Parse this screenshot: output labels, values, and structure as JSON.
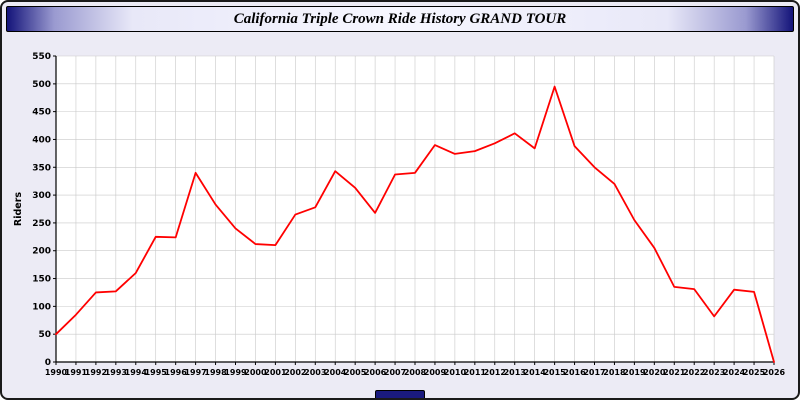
{
  "title": "California Triple Crown Ride History GRAND TOUR",
  "colors": {
    "line": "#ff0000",
    "grid": "#c9c9c9",
    "axis": "#000000",
    "plot_bg": "#ffffff",
    "page_bg": "#ecebf5",
    "titlebar_edge": "#14147a"
  },
  "chart_data": {
    "type": "line",
    "title": "California Triple Crown Ride History GRAND TOUR",
    "xlabel": "",
    "ylabel": "Riders",
    "ylim": [
      0,
      550
    ],
    "ytick_step": 50,
    "grid": true,
    "legend": false,
    "series_name": "Riders",
    "x": [
      1990,
      1991,
      1992,
      1993,
      1994,
      1995,
      1996,
      1997,
      1998,
      1999,
      2000,
      2001,
      2002,
      2003,
      2004,
      2005,
      2006,
      2007,
      2008,
      2009,
      2010,
      2011,
      2012,
      2013,
      2014,
      2015,
      2016,
      2017,
      2018,
      2019,
      2020,
      2021,
      2022,
      2023,
      2024,
      2025,
      2026
    ],
    "values": [
      50,
      85,
      125,
      127,
      160,
      225,
      224,
      340,
      283,
      240,
      212,
      210,
      265,
      278,
      343,
      313,
      268,
      337,
      340,
      390,
      374,
      379,
      393,
      411,
      384,
      495,
      388,
      350,
      320,
      255,
      205,
      135,
      131,
      82,
      130,
      126,
      0
    ]
  }
}
